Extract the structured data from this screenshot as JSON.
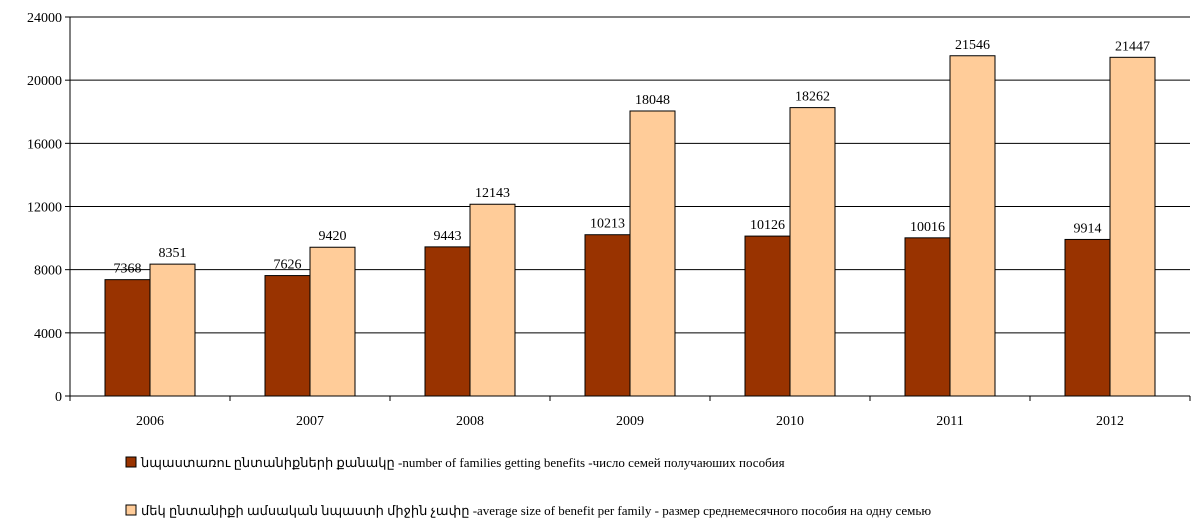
{
  "chart_data": {
    "type": "bar",
    "categories": [
      "2006",
      "2007",
      "2008",
      "2009",
      "2010",
      "2011",
      "2012"
    ],
    "series": [
      {
        "name": "նպաստառու ընտանիքների քանակը -number of families  getting benefits -число семей получаюших пособия",
        "color": "#993300",
        "values": [
          7368,
          7626,
          9443,
          10213,
          10126,
          10016,
          9914
        ]
      },
      {
        "name": "մեկ ընտանիքի ամսական նպաստի միջին չափը -average size of benefit per family - размер среднемесячного пособия на одну семью",
        "color": "#FFCC99",
        "values": [
          8351,
          9420,
          12143,
          18048,
          18262,
          21546,
          21447
        ]
      }
    ],
    "yticks": [
      "0",
      "4000",
      "8000",
      "12000",
      "16000",
      "20000",
      "24000"
    ],
    "ylim": [
      0,
      24000
    ],
    "grid": true,
    "legend": "bottom"
  }
}
